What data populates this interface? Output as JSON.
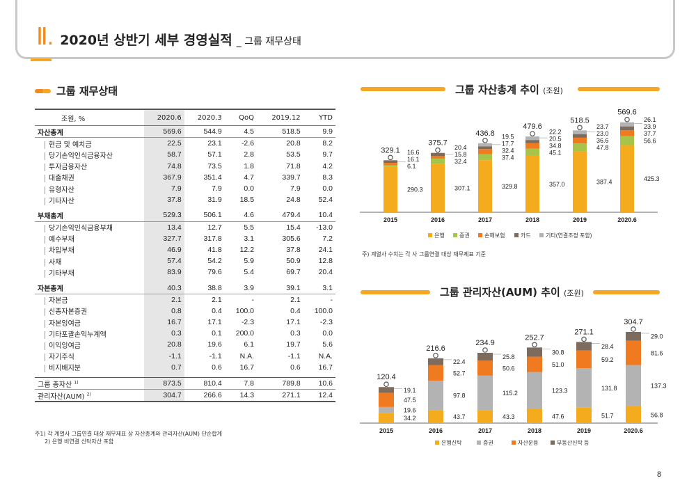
{
  "header": {
    "number": "Ⅱ.",
    "title": "2020년 상반기 세부 경영실적",
    "subtitle": "_ 그룹 재무상태"
  },
  "left_section_title": "그룹 재무상태",
  "table": {
    "columns": [
      "조원, %",
      "2020.6",
      "2020.3",
      "QoQ",
      "2019.12",
      "YTD"
    ],
    "rows": [
      {
        "type": "grp",
        "label": "자산총계",
        "values": [
          "569.6",
          "544.9",
          "4.5",
          "518.5",
          "9.9"
        ]
      },
      {
        "type": "sub",
        "label": "현금 및 예치금",
        "values": [
          "22.5",
          "23.1",
          "-2.6",
          "20.8",
          "8.2"
        ]
      },
      {
        "type": "sub",
        "label": "당기손익인식금융자산",
        "values": [
          "58.7",
          "57.1",
          "2.8",
          "53.5",
          "9.7"
        ]
      },
      {
        "type": "sub",
        "label": "투자금융자산",
        "values": [
          "74.8",
          "73.5",
          "1.8",
          "71.8",
          "4.2"
        ]
      },
      {
        "type": "sub",
        "label": "대출채권",
        "values": [
          "367.9",
          "351.4",
          "4.7",
          "339.7",
          "8.3"
        ]
      },
      {
        "type": "sub",
        "label": "유형자산",
        "values": [
          "7.9",
          "7.9",
          "0.0",
          "7.9",
          "0.0"
        ]
      },
      {
        "type": "sub",
        "label": "기타자산",
        "values": [
          "37.8",
          "31.9",
          "18.5",
          "24.8",
          "52.4"
        ]
      },
      {
        "type": "grp",
        "label": "부채총계",
        "values": [
          "529.3",
          "506.1",
          "4.6",
          "479.4",
          "10.4"
        ]
      },
      {
        "type": "sub",
        "label": "당기손익인식금융부채",
        "values": [
          "13.4",
          "12.7",
          "5.5",
          "15.4",
          "-13.0"
        ]
      },
      {
        "type": "sub",
        "label": "예수부채",
        "values": [
          "327.7",
          "317.8",
          "3.1",
          "305.6",
          "7.2"
        ]
      },
      {
        "type": "sub",
        "label": "차입부채",
        "values": [
          "46.9",
          "41.8",
          "12.2",
          "37.8",
          "24.1"
        ]
      },
      {
        "type": "sub",
        "label": "사채",
        "values": [
          "57.4",
          "54.2",
          "5.9",
          "50.9",
          "12.8"
        ]
      },
      {
        "type": "sub",
        "label": "기타부채",
        "values": [
          "83.9",
          "79.6",
          "5.4",
          "69.7",
          "20.4"
        ]
      },
      {
        "type": "grp",
        "label": "자본총계",
        "values": [
          "40.3",
          "38.8",
          "3.9",
          "39.1",
          "3.1"
        ]
      },
      {
        "type": "sub",
        "label": "자본금",
        "values": [
          "2.1",
          "2.1",
          "-",
          "2.1",
          "-"
        ]
      },
      {
        "type": "sub",
        "label": "신종자본증권",
        "values": [
          "0.8",
          "0.4",
          "100.0",
          "0.4",
          "100.0"
        ]
      },
      {
        "type": "sub",
        "label": "자본잉여금",
        "values": [
          "16.7",
          "17.1",
          "-2.3",
          "17.1",
          "-2.3"
        ]
      },
      {
        "type": "sub",
        "label": "기타포괄손익누계액",
        "values": [
          "0.3",
          "0.1",
          "200.0",
          "0.3",
          "0.0"
        ]
      },
      {
        "type": "sub",
        "label": "이익잉여금",
        "values": [
          "20.8",
          "19.6",
          "6.1",
          "19.7",
          "5.6"
        ]
      },
      {
        "type": "sub",
        "label": "자기주식",
        "values": [
          "-1.1",
          "-1.1",
          "N.A.",
          "-1.1",
          "N.A."
        ]
      },
      {
        "type": "sub",
        "label": "비지배지분",
        "values": [
          "0.7",
          "0.6",
          "16.7",
          "0.6",
          "16.7"
        ]
      },
      {
        "type": "tot",
        "label": "그룹 총자산",
        "sup": "1)",
        "values": [
          "873.5",
          "810.4",
          "7.8",
          "789.8",
          "10.6"
        ]
      },
      {
        "type": "last",
        "label": "관리자산(AUM)",
        "sup": "2)",
        "values": [
          "304.7",
          "266.6",
          "14.3",
          "271.1",
          "12.4"
        ]
      }
    ]
  },
  "footnotes": [
    "주1) 각 계열사 그룹연결 대상 재무제표 상 자산총계와 관리자산(AUM) 단순합계",
    "2) 은행 비연결 신탁자산 포함"
  ],
  "chart_data": [
    {
      "type": "bar",
      "stacked": true,
      "title": "그룹 자산총계 추이",
      "unit": "(조원)",
      "categories": [
        "2015",
        "2016",
        "2017",
        "2018",
        "2019",
        "2020.6"
      ],
      "totals": [
        "329.1",
        "375.7",
        "436.8",
        "479.6",
        "518.5",
        "569.6"
      ],
      "series": [
        {
          "name": "은행",
          "color": "#f5ab1e",
          "values": [
            290.3,
            307.1,
            329.8,
            357.0,
            387.4,
            425.3
          ]
        },
        {
          "name": "증권",
          "color": "#a6c44a",
          "values": [
            6.1,
            32.4,
            37.4,
            45.1,
            47.8,
            56.6
          ]
        },
        {
          "name": "손해보험",
          "color": "#f07a1f",
          "values": [
            16.1,
            15.8,
            32.4,
            34.8,
            36.6,
            37.7
          ]
        },
        {
          "name": "카드",
          "color": "#7d6b5d",
          "values": [
            16.6,
            20.4,
            17.7,
            20.5,
            23.0,
            23.9
          ]
        },
        {
          "name": "기타(연결조정 포함)",
          "color": "#b3b3b3",
          "values": [
            0,
            0,
            19.5,
            22.2,
            23.7,
            26.1
          ]
        }
      ],
      "labels": [
        [
          "290.3",
          "6.1",
          "16.1",
          "16.6",
          ""
        ],
        [
          "307.1",
          "32.4",
          "15.8",
          "20.4",
          ""
        ],
        [
          "329.8",
          "37.4",
          "32.4",
          "17.7",
          "19.5"
        ],
        [
          "357.0",
          "45.1",
          "34.8",
          "20.5",
          "22.2"
        ],
        [
          "387.4",
          "47.8",
          "36.6",
          "23.0",
          "23.7"
        ],
        [
          "425.3",
          "56.6",
          "37.7",
          "23.9",
          "26.1"
        ]
      ],
      "note": "주) 계열사 수치는 각 사 그룹연결 대상 재무제표 기준"
    },
    {
      "type": "bar",
      "stacked": true,
      "title": "그룹 관리자산(AUM) 추이",
      "unit": "(조원)",
      "categories": [
        "2015",
        "2016",
        "2017",
        "2018",
        "2019",
        "2020.6"
      ],
      "totals": [
        "120.4",
        "216.6",
        "234.9",
        "252.7",
        "271.1",
        "304.7"
      ],
      "series": [
        {
          "name": "은행신탁",
          "color": "#f5ab1e",
          "values": [
            34.2,
            43.7,
            43.3,
            47.6,
            51.7,
            56.8
          ]
        },
        {
          "name": "증권",
          "color": "#b3b3b3",
          "values": [
            19.6,
            97.8,
            115.2,
            123.3,
            131.8,
            137.3
          ]
        },
        {
          "name": "자산운용",
          "color": "#f07a1f",
          "values": [
            47.5,
            52.7,
            50.6,
            51.0,
            59.2,
            81.6
          ]
        },
        {
          "name": "부동산신탁 등",
          "color": "#7d6b5d",
          "values": [
            19.1,
            22.4,
            25.8,
            30.8,
            28.4,
            29.0
          ]
        }
      ],
      "labels": [
        [
          "34.2",
          "19.6",
          "47.5",
          "19.1"
        ],
        [
          "43.7",
          "97.8",
          "52.7",
          "22.4"
        ],
        [
          "43.3",
          "115.2",
          "50.6",
          "25.8"
        ],
        [
          "47.6",
          "123.3",
          "51.0",
          "30.8"
        ],
        [
          "51.7",
          "131.8",
          "59.2",
          "28.4"
        ],
        [
          "56.8",
          "137.3",
          "81.6",
          "29.0"
        ]
      ]
    }
  ],
  "page_number": "8"
}
